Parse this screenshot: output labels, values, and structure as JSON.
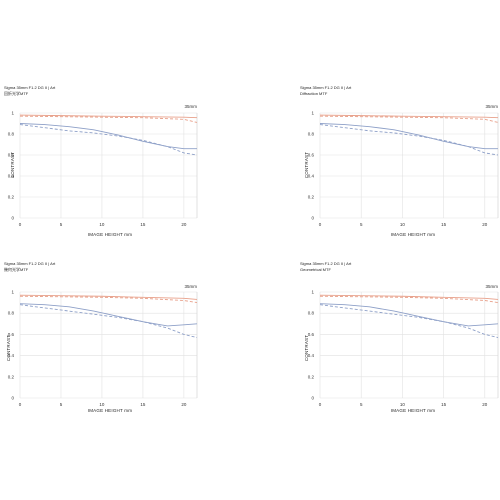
{
  "chart_data": [
    {
      "type": "line",
      "title": "Sigma 35mm F1.2 DG II | Art",
      "subtitle": "回折光学MTF",
      "focal_label": "35mm",
      "xlabel": "IMAGE HEIGHT  mm",
      "ylabel": "CONTRAST",
      "xlim": [
        0,
        21.6
      ],
      "ylim": [
        0,
        1
      ],
      "x_ticks": [
        "0",
        "5",
        "10",
        "15",
        "20"
      ],
      "y_ticks": [
        "0",
        "0.2",
        "0.4",
        "0.6",
        "0.8",
        "1"
      ],
      "grid": true,
      "series": [
        {
          "color": "#e8a08a",
          "style": "solid",
          "x": [
            0,
            5,
            10,
            15,
            20,
            21.6
          ],
          "values": [
            0.98,
            0.975,
            0.97,
            0.965,
            0.96,
            0.955
          ]
        },
        {
          "color": "#e8a08a",
          "style": "dashed",
          "x": [
            0,
            5,
            10,
            15,
            20,
            21.6
          ],
          "values": [
            0.97,
            0.965,
            0.96,
            0.955,
            0.94,
            0.91
          ]
        },
        {
          "color": "#8ea0c8",
          "style": "solid",
          "x": [
            0,
            3,
            6,
            9,
            12,
            15,
            18,
            20,
            21.6
          ],
          "values": [
            0.9,
            0.89,
            0.87,
            0.84,
            0.79,
            0.73,
            0.68,
            0.66,
            0.66
          ]
        },
        {
          "color": "#8ea0c8",
          "style": "dashed",
          "x": [
            0,
            3,
            6,
            9,
            12,
            15,
            18,
            20,
            21.6
          ],
          "values": [
            0.89,
            0.86,
            0.83,
            0.81,
            0.78,
            0.74,
            0.68,
            0.62,
            0.6
          ]
        }
      ]
    },
    {
      "type": "line",
      "title": "Sigma 35mm F1.2 DG II | Art",
      "subtitle": "Diffraction MTF",
      "focal_label": "35mm",
      "xlabel": "IMAGE HEIGHT  mm",
      "ylabel": "CONTRAST",
      "xlim": [
        0,
        21.6
      ],
      "ylim": [
        0,
        1
      ],
      "x_ticks": [
        "0",
        "5",
        "10",
        "15",
        "20"
      ],
      "y_ticks": [
        "0",
        "0.2",
        "0.4",
        "0.6",
        "0.8",
        "1"
      ],
      "grid": true,
      "series": [
        {
          "color": "#e8a08a",
          "style": "solid",
          "x": [
            0,
            5,
            10,
            15,
            20,
            21.6
          ],
          "values": [
            0.98,
            0.975,
            0.97,
            0.965,
            0.96,
            0.955
          ]
        },
        {
          "color": "#e8a08a",
          "style": "dashed",
          "x": [
            0,
            5,
            10,
            15,
            20,
            21.6
          ],
          "values": [
            0.97,
            0.965,
            0.96,
            0.955,
            0.94,
            0.91
          ]
        },
        {
          "color": "#8ea0c8",
          "style": "solid",
          "x": [
            0,
            3,
            6,
            9,
            12,
            15,
            18,
            20,
            21.6
          ],
          "values": [
            0.9,
            0.89,
            0.87,
            0.84,
            0.79,
            0.73,
            0.68,
            0.66,
            0.66
          ]
        },
        {
          "color": "#8ea0c8",
          "style": "dashed",
          "x": [
            0,
            3,
            6,
            9,
            12,
            15,
            18,
            20,
            21.6
          ],
          "values": [
            0.89,
            0.86,
            0.83,
            0.81,
            0.78,
            0.74,
            0.68,
            0.62,
            0.6
          ]
        }
      ]
    },
    {
      "type": "line",
      "title": "Sigma 35mm F1.2 DG II | Art",
      "subtitle": "幾何光学MTF",
      "focal_label": "35mm",
      "xlabel": "IMAGE HEIGHT  mm",
      "ylabel": "CONTRAST",
      "xlim": [
        0,
        21.6
      ],
      "ylim": [
        0,
        1
      ],
      "x_ticks": [
        "0",
        "5",
        "10",
        "15",
        "20"
      ],
      "y_ticks": [
        "0",
        "0.2",
        "0.4",
        "0.6",
        "0.8",
        "1"
      ],
      "grid": true,
      "series": [
        {
          "color": "#e8a08a",
          "style": "solid",
          "x": [
            0,
            5,
            10,
            15,
            20,
            21.6
          ],
          "values": [
            0.97,
            0.965,
            0.96,
            0.95,
            0.94,
            0.93
          ]
        },
        {
          "color": "#e8a08a",
          "style": "dashed",
          "x": [
            0,
            5,
            10,
            15,
            20,
            21.6
          ],
          "values": [
            0.96,
            0.955,
            0.95,
            0.94,
            0.92,
            0.9
          ]
        },
        {
          "color": "#8ea0c8",
          "style": "solid",
          "x": [
            0,
            3,
            6,
            9,
            12,
            15,
            18,
            20,
            21.6
          ],
          "values": [
            0.89,
            0.88,
            0.86,
            0.82,
            0.77,
            0.72,
            0.68,
            0.69,
            0.7
          ]
        },
        {
          "color": "#8ea0c8",
          "style": "dashed",
          "x": [
            0,
            3,
            6,
            9,
            12,
            15,
            18,
            20,
            21.6
          ],
          "values": [
            0.88,
            0.85,
            0.82,
            0.79,
            0.76,
            0.72,
            0.66,
            0.6,
            0.57
          ]
        }
      ]
    },
    {
      "type": "line",
      "title": "Sigma 35mm F1.2 DG II | Art",
      "subtitle": "Geometrical MTF",
      "focal_label": "35mm",
      "xlabel": "IMAGE HEIGHT  mm",
      "ylabel": "CONTRAST",
      "xlim": [
        0,
        21.6
      ],
      "ylim": [
        0,
        1
      ],
      "x_ticks": [
        "0",
        "5",
        "10",
        "15",
        "20"
      ],
      "y_ticks": [
        "0",
        "0.2",
        "0.4",
        "0.6",
        "0.8",
        "1"
      ],
      "grid": true,
      "series": [
        {
          "color": "#e8a08a",
          "style": "solid",
          "x": [
            0,
            5,
            10,
            15,
            20,
            21.6
          ],
          "values": [
            0.97,
            0.965,
            0.96,
            0.95,
            0.94,
            0.93
          ]
        },
        {
          "color": "#e8a08a",
          "style": "dashed",
          "x": [
            0,
            5,
            10,
            15,
            20,
            21.6
          ],
          "values": [
            0.96,
            0.955,
            0.95,
            0.94,
            0.92,
            0.9
          ]
        },
        {
          "color": "#8ea0c8",
          "style": "solid",
          "x": [
            0,
            3,
            6,
            9,
            12,
            15,
            18,
            20,
            21.6
          ],
          "values": [
            0.89,
            0.88,
            0.86,
            0.82,
            0.77,
            0.72,
            0.68,
            0.69,
            0.7
          ]
        },
        {
          "color": "#8ea0c8",
          "style": "dashed",
          "x": [
            0,
            3,
            6,
            9,
            12,
            15,
            18,
            20,
            21.6
          ],
          "values": [
            0.88,
            0.85,
            0.82,
            0.79,
            0.76,
            0.72,
            0.66,
            0.6,
            0.57
          ]
        }
      ]
    }
  ]
}
